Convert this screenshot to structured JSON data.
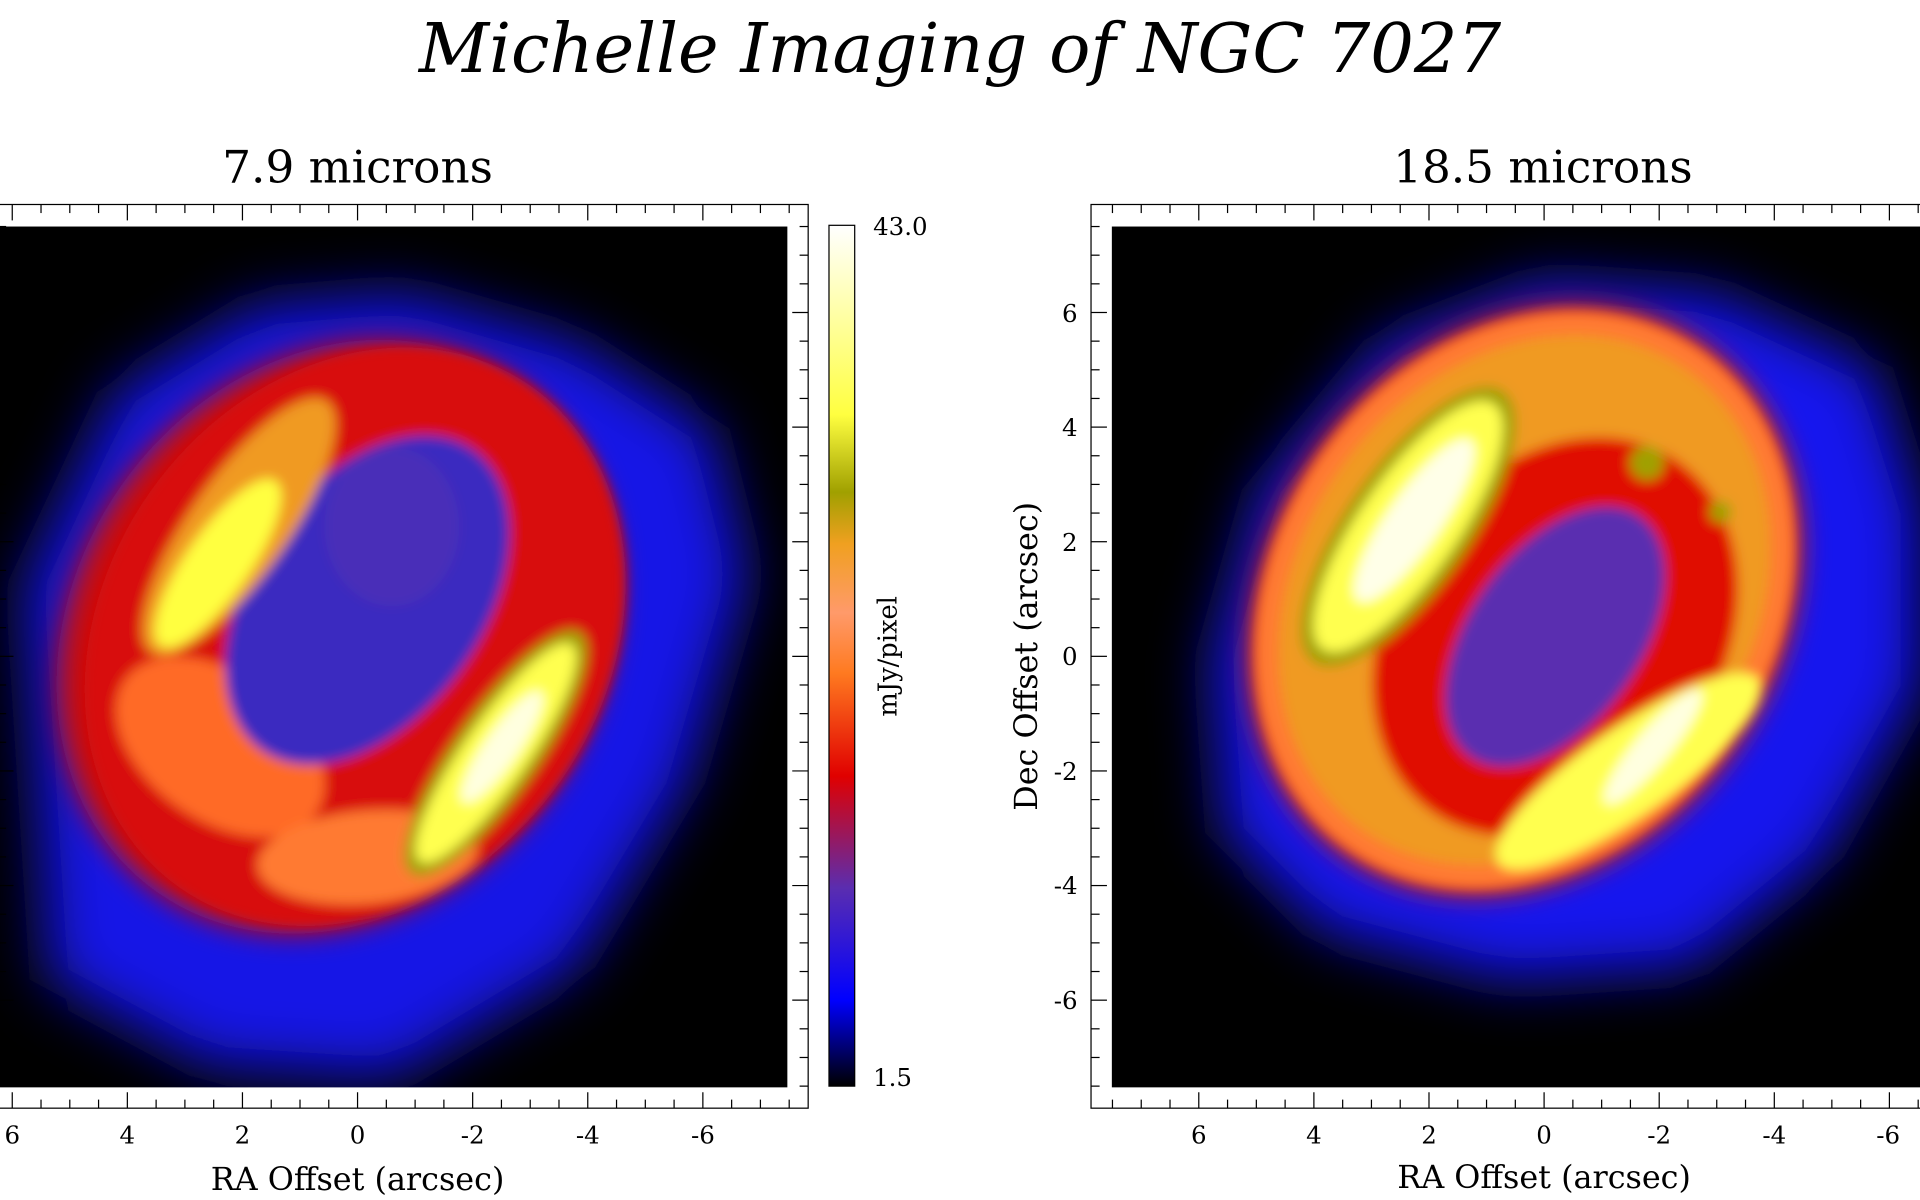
{
  "title": "Michelle Imaging of NGC 7027",
  "panels": [
    {
      "title": "7.9 microns",
      "xlabel": "RA Offset (arcsec)",
      "ylabel": "",
      "x_ticks": [
        "6",
        "4",
        "2",
        "0",
        "-2",
        "-4",
        "-6"
      ],
      "y_ticks": []
    },
    {
      "title": "18.5 microns",
      "xlabel": "RA Offset (arcsec)",
      "ylabel": "Dec Offset (arcsec)",
      "x_ticks": [
        "6",
        "4",
        "2",
        "0",
        "-2",
        "-4",
        "-6"
      ],
      "y_ticks": [
        "6",
        "4",
        "2",
        "0",
        "-2",
        "-4",
        "-6"
      ]
    }
  ],
  "colorbar": {
    "label": "mJy/pixel",
    "max": "43.0",
    "min": "1.5",
    "colormap": [
      "#000000",
      "#0000ff",
      "#5a2db0",
      "#e00000",
      "#ff7a20",
      "#ff9a6a",
      "#f0a020",
      "#a0a000",
      "#ffff40",
      "#ffffff"
    ]
  },
  "chart_data": {
    "type": "heatmap",
    "title": "Michelle Imaging of NGC 7027",
    "images": [
      {
        "name": "7.9 microns",
        "xlabel": "RA Offset (arcsec)",
        "xlim": [
          7.5,
          -7.5
        ],
        "ylim": [
          -7.5,
          7.5
        ]
      },
      {
        "name": "18.5 microns",
        "xlabel": "RA Offset (arcsec)",
        "ylabel": "Dec Offset (arcsec)",
        "xlim": [
          7.5,
          -7.5
        ],
        "ylim": [
          -7.5,
          7.5
        ]
      }
    ],
    "x_ticks": [
      6,
      4,
      2,
      0,
      -2,
      -4,
      -6
    ],
    "y_ticks": [
      6,
      4,
      2,
      0,
      -2,
      -4,
      -6
    ],
    "colorbar_range": [
      1.5,
      43.0
    ],
    "colorbar_unit": "mJy/pixel"
  }
}
